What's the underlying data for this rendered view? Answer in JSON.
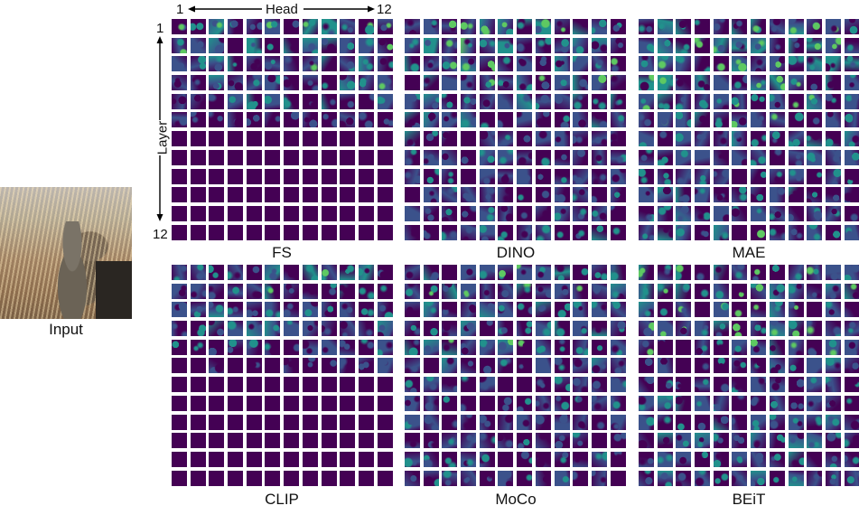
{
  "input": {
    "label": "Input"
  },
  "axes": {
    "head_label": "Head",
    "head_start": "1",
    "head_end": "12",
    "layer_label": "Layer",
    "layer_start": "1",
    "layer_end": "12"
  },
  "grid_shape": {
    "rows": 12,
    "cols": 12
  },
  "colormap": [
    "#440154",
    "#3b528b",
    "#21918c",
    "#5ec962",
    "#fde725"
  ],
  "panels": [
    {
      "label": "FS",
      "activity": [
        0.55,
        0.5,
        0.45,
        0.45,
        0.4,
        0.3,
        0.12,
        0.1,
        0.08,
        0.08,
        0.08,
        0.08
      ]
    },
    {
      "label": "DINO",
      "activity": [
        0.55,
        0.55,
        0.5,
        0.5,
        0.5,
        0.45,
        0.4,
        0.38,
        0.35,
        0.35,
        0.35,
        0.4
      ]
    },
    {
      "label": "MAE",
      "activity": [
        0.5,
        0.55,
        0.55,
        0.55,
        0.5,
        0.5,
        0.45,
        0.42,
        0.42,
        0.4,
        0.4,
        0.45
      ]
    },
    {
      "label": "CLIP",
      "activity": [
        0.5,
        0.45,
        0.45,
        0.45,
        0.4,
        0.25,
        0.12,
        0.1,
        0.08,
        0.08,
        0.08,
        0.1
      ]
    },
    {
      "label": "MoCo",
      "activity": [
        0.5,
        0.5,
        0.45,
        0.45,
        0.45,
        0.4,
        0.35,
        0.35,
        0.35,
        0.35,
        0.35,
        0.4
      ]
    },
    {
      "label": "BEiT",
      "activity": [
        0.5,
        0.55,
        0.5,
        0.5,
        0.5,
        0.45,
        0.42,
        0.4,
        0.4,
        0.4,
        0.4,
        0.45
      ]
    }
  ]
}
